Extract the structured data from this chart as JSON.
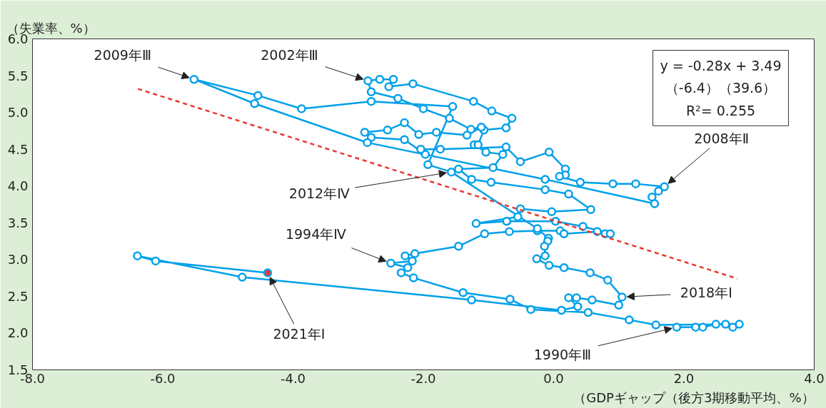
{
  "chart_data": {
    "type": "line",
    "xlabel": "（GDPギャップ（後方3期移動平均、%）",
    "ylabel": "（失業率、%）",
    "xlim": [
      -8,
      4
    ],
    "ylim": [
      1.5,
      6.0
    ],
    "xticks": [
      {
        "value": -8,
        "label": "-8.0"
      },
      {
        "value": -6,
        "label": "-6.0"
      },
      {
        "value": -4,
        "label": "-4.0"
      },
      {
        "value": -2,
        "label": "-2.0"
      },
      {
        "value": 0,
        "label": "0.0"
      },
      {
        "value": 2,
        "label": "2.0"
      },
      {
        "value": 4,
        "label": "4.0"
      }
    ],
    "yticks": [
      {
        "value": 1.5,
        "label": "1.5"
      },
      {
        "value": 2,
        "label": "2.0"
      },
      {
        "value": 2.5,
        "label": "2.5"
      },
      {
        "value": 3,
        "label": "3.0"
      },
      {
        "value": 3.5,
        "label": "3.5"
      },
      {
        "value": 4,
        "label": "4.0"
      },
      {
        "value": 4.5,
        "label": "4.5"
      },
      {
        "value": 5,
        "label": "5.0"
      },
      {
        "value": 5.5,
        "label": "5.5"
      },
      {
        "value": 6,
        "label": "6.0"
      }
    ],
    "series": [
      {
        "marker": "circle",
        "color": "#00a0e9",
        "x": [
          1.89,
          2.18,
          2.29,
          2.49,
          2.64,
          2.75,
          2.85,
          1.57,
          1.16,
          0.53,
          -0.35,
          -0.67,
          -1.39,
          -2.15,
          -2.34,
          -2.24,
          -2.5,
          -2.17,
          -2.28,
          -2.13,
          -1.46,
          -1.06,
          -0.68,
          -0.25,
          0.1,
          0.16,
          0.67,
          0.79,
          0.87,
          0.45,
          0.03,
          -0.72,
          -1.19,
          -0.55,
          -0.51,
          -0.03,
          0.57,
          0.23,
          -0.13,
          -0.96,
          -1.26,
          -1.46,
          -0.93,
          -0.78,
          -1.04,
          -1.22,
          -1.16,
          -1.07,
          -0.73,
          -0.64,
          -0.95,
          -1.23,
          -2.16,
          -2.53,
          -2.46,
          -2.67,
          -2.85,
          -2.8,
          -2.39,
          -2.0,
          -1.6,
          -1.27,
          -1.11,
          -1.33,
          -1.8,
          -2.07,
          -2.29,
          -2.55,
          -2.9,
          -2.8,
          -2.29,
          -1.97,
          -2.04,
          -1.74,
          -0.73,
          -0.51,
          -0.07,
          0.18,
          0.18,
          0.09,
          0.41,
          0.91,
          1.26,
          1.7,
          1.61,
          1.51,
          1.55,
          -0.13,
          -2.86,
          -4.59,
          -5.52,
          -4.54,
          -3.87,
          -2.8,
          -1.55,
          -1.93,
          -1.57,
          -0.25,
          -0.08,
          -0.09,
          -0.14,
          -0.13,
          -0.26,
          -0.07,
          0.16,
          0.56,
          0.83,
          1.05,
          1.0,
          0.59,
          0.35,
          0.23,
          0.37,
          0.12,
          -1.26,
          -4.78,
          -6.39,
          -6.11,
          -4.39
        ],
        "values": [
          2.08,
          2.08,
          2.08,
          2.12,
          2.12,
          2.08,
          2.12,
          2.11,
          2.18,
          2.28,
          2.32,
          2.46,
          2.55,
          2.75,
          2.82,
          2.89,
          2.95,
          2.98,
          3.05,
          3.08,
          3.18,
          3.35,
          3.38,
          3.39,
          3.39,
          3.35,
          3.38,
          3.35,
          3.35,
          3.45,
          3.52,
          3.52,
          3.49,
          3.58,
          3.69,
          3.65,
          3.68,
          3.89,
          3.95,
          4.05,
          4.09,
          4.23,
          4.25,
          4.43,
          4.46,
          4.56,
          4.56,
          4.76,
          4.79,
          4.92,
          5.02,
          5.15,
          5.39,
          5.35,
          5.45,
          5.45,
          5.43,
          5.28,
          5.19,
          5.05,
          4.92,
          4.77,
          4.8,
          4.69,
          4.73,
          4.7,
          4.86,
          4.76,
          4.73,
          4.66,
          4.63,
          4.43,
          4.5,
          4.5,
          4.53,
          4.33,
          4.46,
          4.23,
          4.15,
          4.13,
          4.05,
          4.03,
          4.03,
          3.99,
          3.93,
          3.85,
          3.76,
          4.09,
          4.59,
          5.12,
          5.45,
          5.23,
          5.05,
          5.15,
          5.08,
          4.29,
          4.19,
          3.42,
          3.29,
          3.25,
          3.18,
          3.05,
          3.01,
          2.92,
          2.89,
          2.82,
          2.72,
          2.49,
          2.38,
          2.45,
          2.48,
          2.48,
          2.36,
          2.31,
          2.45,
          2.76,
          3.05,
          2.98,
          2.82
        ]
      },
      {
        "type": "scatter",
        "marker": "circle",
        "color": "#e8382f",
        "x": [
          -4.39
        ],
        "values": [
          2.82
        ]
      },
      {
        "type": "line",
        "marker": "none",
        "line_style": "dashed",
        "color": "#e8382f",
        "x": [
          -6.38,
          2.82
        ],
        "values": [
          5.32,
          2.74
        ]
      }
    ],
    "annotations": [
      {
        "text": "2009年Ⅲ",
        "x": -5.52,
        "y": 5.45
      },
      {
        "text": "2002年Ⅲ",
        "x": -2.85,
        "y": 5.43
      },
      {
        "text": "2008年Ⅱ",
        "x": 1.7,
        "y": 3.99
      },
      {
        "text": "2012年Ⅳ",
        "x": -1.57,
        "y": 4.19
      },
      {
        "text": "1994年Ⅳ",
        "x": -2.5,
        "y": 2.95
      },
      {
        "text": "2018年Ⅰ",
        "x": 1.05,
        "y": 2.49
      },
      {
        "text": "2021年Ⅰ",
        "x": -4.39,
        "y": 2.82
      },
      {
        "text": "1990年Ⅲ",
        "x": 1.89,
        "y": 2.08
      },
      "y = -0.28x + 3.49",
      "（-6.4）（39.6）",
      "R²= 0.255"
    ]
  }
}
